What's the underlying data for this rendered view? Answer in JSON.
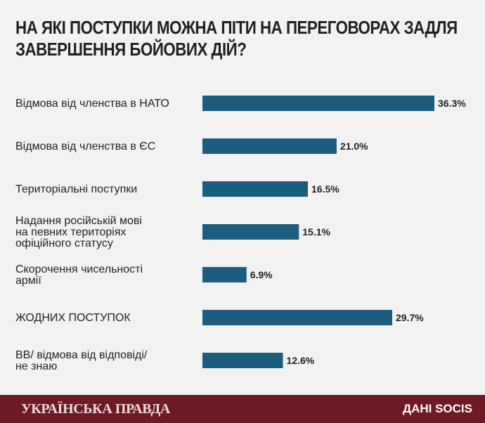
{
  "title": {
    "line1": "НА ЯКІ ПОСТУПКИ МОЖНА ПІТИ НА ПЕРЕГОВОРАХ ЗАДЛЯ",
    "line2": "ЗАВЕРШЕННЯ БОЙОВИХ ДІЙ?"
  },
  "chart_data": {
    "type": "bar",
    "orientation": "horizontal",
    "categories": [
      "Відмова від членства в НАТО",
      "Відмова від членства в ЄС",
      "Територіальні поступки",
      "Надання російській мові на певних територіях офіційного статусу",
      "Скорочення чисельності армії",
      "ЖОДНИХ ПОСТУПОК",
      "ВВ/ відмова від відповіді/ не знаю"
    ],
    "category_lines": [
      [
        "Відмова від членства в НАТО"
      ],
      [
        "Відмова від членства в ЄС"
      ],
      [
        "Територіальні поступки"
      ],
      [
        "Надання російській мові",
        "на певних територіях",
        "офіційного статусу"
      ],
      [
        "Скорочення чисельності",
        "армії"
      ],
      [
        "ЖОДНИХ ПОСТУПОК"
      ],
      [
        "ВВ/ відмова від відповіді/",
        "не знаю"
      ]
    ],
    "values": [
      36.3,
      21.0,
      16.5,
      15.1,
      6.9,
      29.7,
      12.6
    ],
    "value_labels": [
      "36.3%",
      "21.0%",
      "16.5%",
      "15.1%",
      "6.9%",
      "29.7%",
      "12.6%"
    ],
    "xlim": [
      0,
      36.3
    ],
    "grid": false,
    "bar_color": "#1c5d7f"
  },
  "footer": {
    "brand": "УКРАЇНСЬКА ПРАВДА",
    "source": "ДАНІ SOCIS",
    "background": "#6e1a22"
  }
}
